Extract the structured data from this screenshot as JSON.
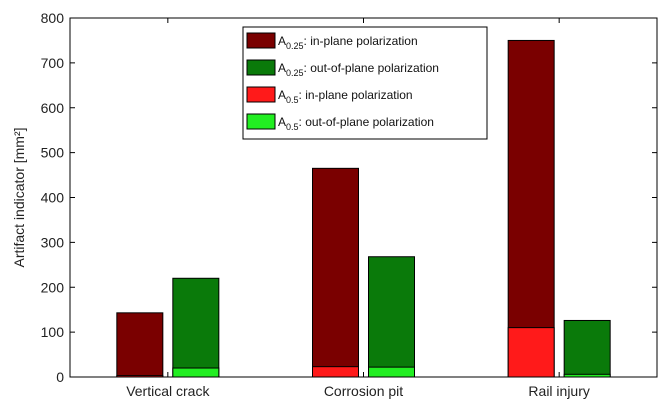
{
  "chart_data": {
    "type": "bar",
    "categories": [
      "Vertical crack",
      "Corrosion pit",
      "Rail injury"
    ],
    "ylabel": "Artifact indicator [mm²]",
    "ylim": [
      0,
      800
    ],
    "yticks": [
      0,
      100,
      200,
      300,
      400,
      500,
      600,
      700,
      800
    ],
    "grid": false,
    "legend_position": "top-center",
    "series": [
      {
        "name": "A0.25: in-plane polarization",
        "legend_base": "A",
        "legend_sub": "0.25",
        "legend_suffix": ": in-plane polarization",
        "color": "#7a0000",
        "group": "in-plane",
        "values": [
          143,
          465,
          750
        ]
      },
      {
        "name": "A0.25: out-of-plane polarization",
        "legend_base": "A",
        "legend_sub": "0.25",
        "legend_suffix": ": out-of-plane polarization",
        "color": "#0a7a0a",
        "group": "out-of-plane",
        "values": [
          220,
          268,
          126
        ]
      },
      {
        "name": "A0.5: in-plane polarization",
        "legend_base": "A",
        "legend_sub": "0.5",
        "legend_suffix": ": in-plane polarization",
        "color": "#ff1a1a",
        "group": "in-plane",
        "values": [
          3,
          23,
          110
        ]
      },
      {
        "name": "A0.5: out-of-plane polarization",
        "legend_base": "A",
        "legend_sub": "0.5",
        "legend_suffix": ": out-of-plane polarization",
        "color": "#22ee22",
        "group": "out-of-plane",
        "values": [
          20,
          22,
          6
        ]
      }
    ]
  }
}
